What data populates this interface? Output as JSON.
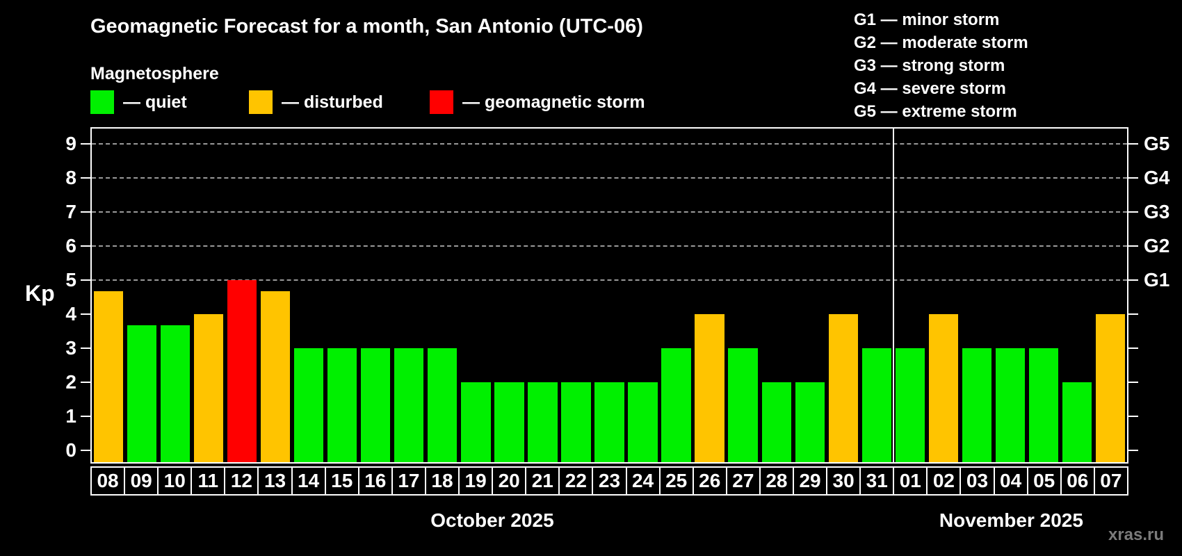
{
  "title": "Geomagnetic Forecast for a month, San Antonio (UTC-06)",
  "subtitle": "Magnetosphere",
  "legend": {
    "items": [
      {
        "state": "quiet",
        "label": "— quiet",
        "color": "#00f000"
      },
      {
        "state": "disturbed",
        "label": "— disturbed",
        "color": "#ffc400"
      },
      {
        "state": "storm",
        "label": "— geomagnetic storm",
        "color": "#ff0000"
      }
    ]
  },
  "g_legend": [
    "G1 — minor storm",
    "G2 — moderate storm",
    "G3 — strong storm",
    "G4 — severe storm",
    "G5 — extreme storm"
  ],
  "watermark": "xras.ru",
  "chart_data": {
    "type": "bar",
    "title": "Geomagnetic Forecast for a month, San Antonio (UTC-06)",
    "ylabel": "Kp",
    "y_ticks": [
      0,
      1,
      2,
      3,
      4,
      5,
      6,
      7,
      8,
      9
    ],
    "y_range_drawn": [
      -0.35,
      9.45
    ],
    "gridlines_at": [
      5,
      6,
      7,
      8,
      9
    ],
    "grid": true,
    "right_axis_labels": [
      {
        "kp": 5,
        "label": "G1"
      },
      {
        "kp": 6,
        "label": "G2"
      },
      {
        "kp": 7,
        "label": "G3"
      },
      {
        "kp": 8,
        "label": "G4"
      },
      {
        "kp": 9,
        "label": "G5"
      }
    ],
    "categories": [
      "08",
      "09",
      "10",
      "11",
      "12",
      "13",
      "14",
      "15",
      "16",
      "17",
      "18",
      "19",
      "20",
      "21",
      "22",
      "23",
      "24",
      "25",
      "26",
      "27",
      "28",
      "29",
      "30",
      "31",
      "01",
      "02",
      "03",
      "04",
      "05",
      "06",
      "07"
    ],
    "values": [
      4.67,
      3.67,
      3.67,
      4,
      5,
      4.67,
      3,
      3,
      3,
      3,
      3,
      2,
      2,
      2,
      2,
      2,
      2,
      3,
      4,
      3,
      2,
      2,
      4,
      3,
      3,
      4,
      3,
      3,
      3,
      2,
      4
    ],
    "states": [
      "disturbed",
      "quiet",
      "quiet",
      "disturbed",
      "storm",
      "disturbed",
      "quiet",
      "quiet",
      "quiet",
      "quiet",
      "quiet",
      "quiet",
      "quiet",
      "quiet",
      "quiet",
      "quiet",
      "quiet",
      "quiet",
      "disturbed",
      "quiet",
      "quiet",
      "quiet",
      "disturbed",
      "quiet",
      "quiet",
      "disturbed",
      "quiet",
      "quiet",
      "quiet",
      "quiet",
      "disturbed"
    ],
    "state_colors": {
      "quiet": "#00f000",
      "disturbed": "#ffc400",
      "storm": "#ff0000"
    },
    "months": [
      {
        "label": "October 2025",
        "days": 24
      },
      {
        "label": "November 2025",
        "days": 7
      }
    ]
  }
}
